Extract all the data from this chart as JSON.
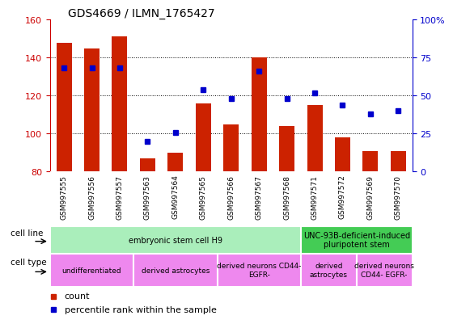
{
  "title": "GDS4669 / ILMN_1765427",
  "samples": [
    "GSM997555",
    "GSM997556",
    "GSM997557",
    "GSM997563",
    "GSM997564",
    "GSM997565",
    "GSM997566",
    "GSM997567",
    "GSM997568",
    "GSM997571",
    "GSM997572",
    "GSM997569",
    "GSM997570"
  ],
  "counts": [
    148,
    145,
    151,
    87,
    90,
    116,
    105,
    140,
    104,
    115,
    98,
    91,
    91
  ],
  "percentiles": [
    68,
    68,
    68,
    20,
    26,
    54,
    48,
    66,
    48,
    52,
    44,
    38,
    40
  ],
  "ymin": 80,
  "ymax": 160,
  "yticks": [
    80,
    100,
    120,
    140,
    160
  ],
  "y2min": 0,
  "y2max": 100,
  "y2ticks": [
    0,
    25,
    50,
    75,
    100
  ],
  "y2tick_labels": [
    "0",
    "25",
    "50",
    "75",
    "100%"
  ],
  "bar_color": "#cc2200",
  "dot_color": "#0000cc",
  "bar_bottom": 80,
  "cell_line_groups": [
    {
      "label": "embryonic stem cell H9",
      "start": 0,
      "end": 8,
      "color": "#aaeebb"
    },
    {
      "label": "UNC-93B-deficient-induced\npluripotent stem",
      "start": 9,
      "end": 12,
      "color": "#44cc55"
    }
  ],
  "cell_type_groups": [
    {
      "label": "undifferentiated",
      "start": 0,
      "end": 2
    },
    {
      "label": "derived astrocytes",
      "start": 3,
      "end": 5
    },
    {
      "label": "derived neurons CD44-\nEGFR-",
      "start": 6,
      "end": 8
    },
    {
      "label": "derived\nastrocytes",
      "start": 9,
      "end": 10
    },
    {
      "label": "derived neurons\nCD44- EGFR-",
      "start": 11,
      "end": 12
    }
  ],
  "cell_type_color": "#ee88ee",
  "legend_count_label": "count",
  "legend_percentile_label": "percentile rank within the sample",
  "tick_color_left": "#cc0000",
  "tick_color_right": "#0000cc",
  "xticklabel_bg": "#cccccc",
  "grid_dotted_at": [
    100,
    120,
    140
  ]
}
